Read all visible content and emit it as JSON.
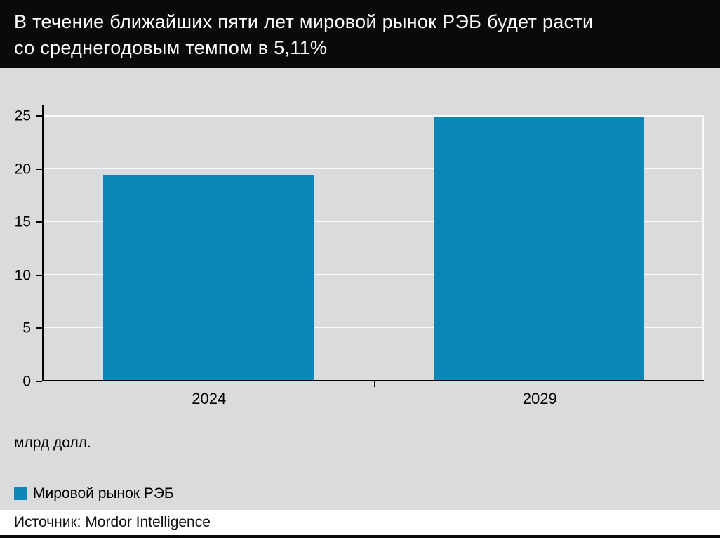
{
  "header": {
    "title_line1": "В течение ближайших пяти лет мировой рынок РЭБ будет расти",
    "title_line2": "со среднегодовым темпом в 5,11%"
  },
  "chart_data": {
    "type": "bar",
    "categories": [
      "2024",
      "2029"
    ],
    "values": [
      19.44,
      24.94
    ],
    "series_name": "Мировой рынок РЭБ",
    "title": "В течение ближайших пяти лет мировой рынок РЭБ будет расти со среднегодовым темпом в 5,11%",
    "xlabel": "",
    "ylabel": "млрд долл.",
    "unit_label": "млрд долл.",
    "ylim": [
      0,
      25
    ],
    "yticks": [
      0,
      5,
      10,
      15,
      20,
      25
    ],
    "bar_color": "#0a86b7",
    "grid": true,
    "legend_position": "bottom-left"
  },
  "legend": {
    "label": "Мировой рынок РЭБ",
    "swatch_color": "#0a86b7"
  },
  "source": {
    "text": "Источник: Mordor Intelligence"
  }
}
